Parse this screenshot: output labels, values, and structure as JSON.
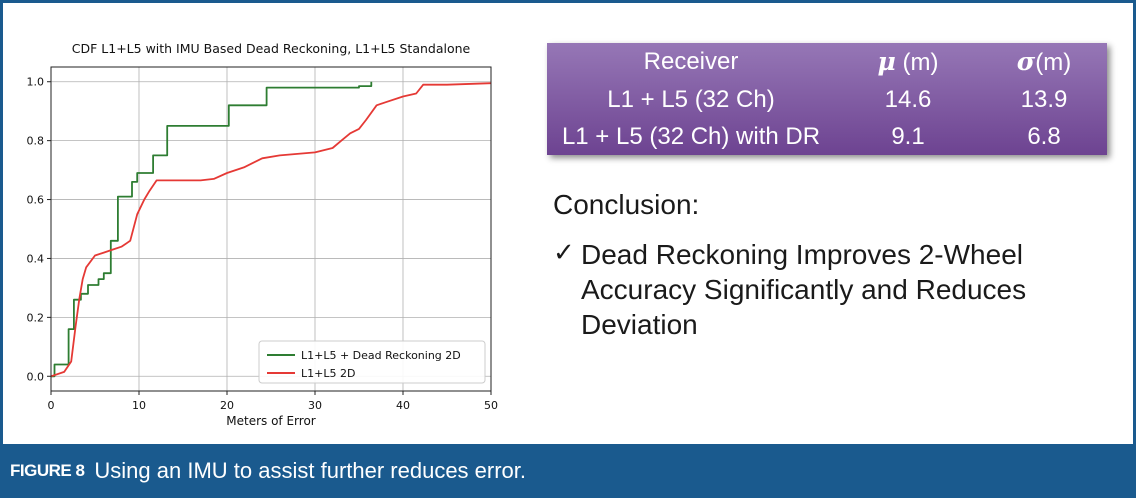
{
  "chart_data": {
    "type": "line",
    "title": "CDF L1+L5 with IMU Based Dead Reckoning, L1+L5 Standalone",
    "xlabel": "Meters of Error",
    "ylabel": "",
    "xlim": [
      0,
      50
    ],
    "ylim": [
      0,
      1.0
    ],
    "x_ticks": [
      0,
      10,
      20,
      30,
      40,
      50
    ],
    "y_ticks": [
      0.0,
      0.2,
      0.4,
      0.6,
      0.8,
      1.0
    ],
    "grid": true,
    "legend_position": "lower-right",
    "series": [
      {
        "name": "L1+L5 + Dead Reckoning 2D",
        "color": "#2e7d32",
        "step": true,
        "x": [
          0,
          0.4,
          2.0,
          2.6,
          3.4,
          4.2,
          5.4,
          6.0,
          6.8,
          7.6,
          9.2,
          9.8,
          11.6,
          13.2,
          20.2,
          24.5,
          35.0,
          36.4
        ],
        "y": [
          0.0,
          0.04,
          0.16,
          0.26,
          0.28,
          0.31,
          0.33,
          0.35,
          0.46,
          0.61,
          0.66,
          0.69,
          0.75,
          0.85,
          0.92,
          0.98,
          0.985,
          1.0
        ]
      },
      {
        "name": "L1+L5 2D",
        "color": "#e53935",
        "step": false,
        "x": [
          0,
          1.5,
          2.3,
          2.8,
          3.2,
          3.6,
          4.0,
          5.0,
          6.0,
          7.0,
          8.0,
          9.0,
          9.8,
          10.6,
          11.2,
          12.0,
          17.0,
          18.5,
          20.0,
          22.0,
          24.0,
          26.0,
          30.0,
          32.0,
          33.0,
          34.0,
          35.0,
          35.8,
          37.0,
          38.0,
          40.0,
          41.5,
          42.3,
          45.0,
          50.0
        ],
        "y": [
          0.0,
          0.015,
          0.05,
          0.17,
          0.26,
          0.33,
          0.37,
          0.41,
          0.42,
          0.43,
          0.44,
          0.46,
          0.55,
          0.6,
          0.63,
          0.665,
          0.665,
          0.67,
          0.69,
          0.71,
          0.74,
          0.75,
          0.76,
          0.775,
          0.8,
          0.825,
          0.84,
          0.87,
          0.92,
          0.93,
          0.95,
          0.96,
          0.99,
          0.99,
          0.995
        ]
      }
    ]
  },
  "stats_table": {
    "header": {
      "receiver": "Receiver",
      "mu_symbol": "μ",
      "mu_unit": " (m)",
      "sigma_symbol": "σ",
      "sigma_unit": "(m)"
    },
    "rows": [
      {
        "receiver": "L1 + L5 (32 Ch)",
        "mu": "14.6",
        "sigma": "13.9"
      },
      {
        "receiver": "L1 + L5 (32 Ch) with DR",
        "mu": "9.1",
        "sigma": "6.8"
      }
    ]
  },
  "conclusion": {
    "heading": "Conclusion:",
    "check_glyph": "✓",
    "lines": [
      "Dead Reckoning Improves 2-Wheel",
      "Accuracy Significantly and Reduces",
      "Deviation"
    ]
  },
  "caption": {
    "label": "FIGURE 8",
    "text": "Using an IMU to assist further reduces error."
  },
  "colors": {
    "caption_bar": "#1a5a8e",
    "table_top": "#9677b6",
    "table_bottom": "#6d4391"
  }
}
